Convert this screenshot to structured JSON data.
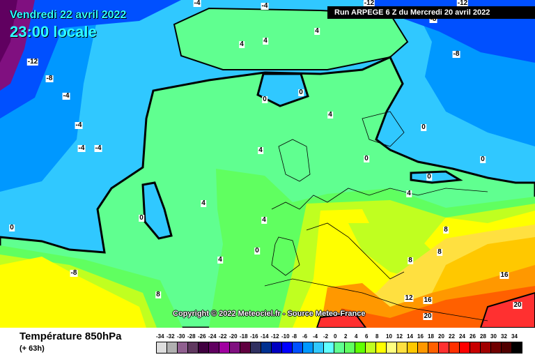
{
  "header": {
    "date": "Vendredi 22 avril 2022",
    "hour": "23:00 locale",
    "run": "Run ARPEGE 6 Z du Mercredi 20 avril 2022"
  },
  "copyright": "Copyright © 2022 Meteociel.fr - Source Meteo-France",
  "footer": {
    "title": "Température 850hPa",
    "subtitle": "(+ 63h)"
  },
  "legend": {
    "labels": [
      "-34",
      "-32",
      "-30",
      "-28",
      "-26",
      "-24",
      "-22",
      "-20",
      "-18",
      "-16",
      "-14",
      "-12",
      "-10",
      "-8",
      "-6",
      "-4",
      "-2",
      "0",
      "2",
      "4",
      "6",
      "8",
      "10",
      "12",
      "14",
      "16",
      "18",
      "20",
      "22",
      "24",
      "26",
      "28",
      "30",
      "32",
      "34"
    ],
    "colors": [
      "#dddddd",
      "#b0b0b0",
      "#906090",
      "#603860",
      "#400040",
      "#600060",
      "#a000a0",
      "#801080",
      "#600040",
      "#303060",
      "#003090",
      "#0000c0",
      "#0000ff",
      "#0050ff",
      "#0098ff",
      "#30c8ff",
      "#60ffff",
      "#60ff90",
      "#60ff60",
      "#60ff00",
      "#c0ff20",
      "#ffff00",
      "#ffff80",
      "#ffe040",
      "#ffc800",
      "#ff9800",
      "#ff6000",
      "#ff3030",
      "#ff3000",
      "#ff0000",
      "#c80000",
      "#a00000",
      "#700000",
      "#500000",
      "#000000"
    ]
  },
  "contour_labels": [
    "-4",
    "-4",
    "-12",
    "-12",
    "-8",
    "4",
    "4",
    "4",
    "-8",
    "-12",
    "-8",
    "-4",
    "0",
    "0",
    "4",
    "-4",
    "-4",
    "-4",
    "4",
    "0",
    "0",
    "0",
    "0",
    "4",
    "0",
    "0",
    "4",
    "0",
    "4",
    "-8",
    "8",
    "16",
    "12",
    "16",
    "20",
    "20",
    "8",
    "8",
    "8",
    "4"
  ]
}
